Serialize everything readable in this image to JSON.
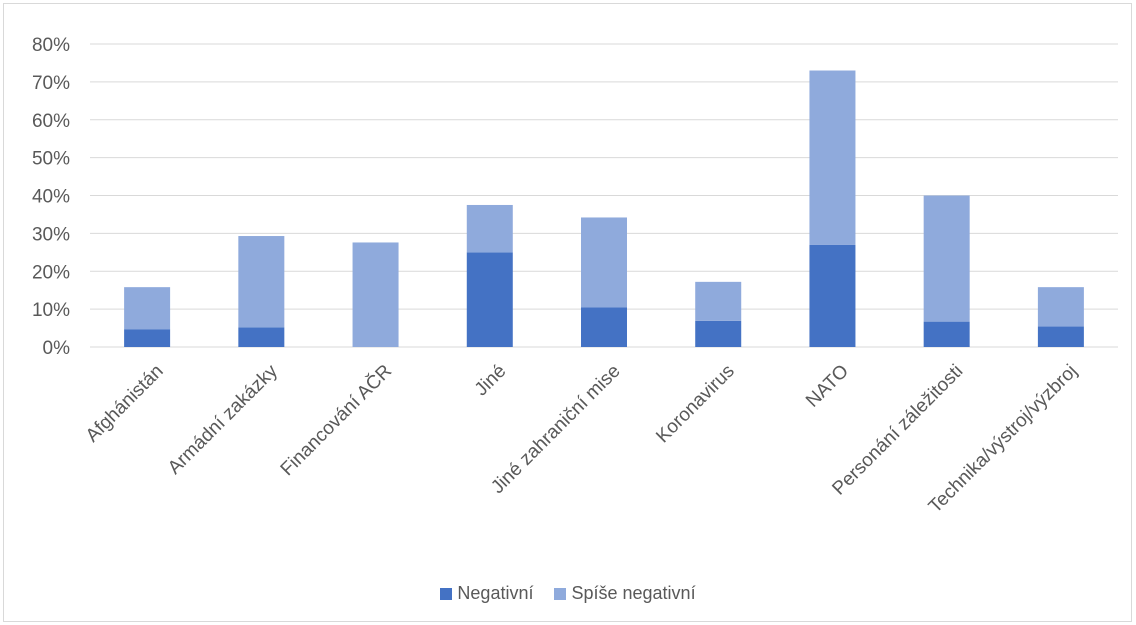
{
  "chart_data": {
    "type": "bar",
    "stacked": true,
    "categories": [
      "Afghánistán",
      "Armádní zakázky",
      "Financování AČR",
      "Jiné",
      "Jiné zahraniční mise",
      "Koronavirus",
      "NATO",
      "Personání záležitosti",
      "Technika/výstroj/výzbroj"
    ],
    "series": [
      {
        "name": "Negativní",
        "color": "#4472c4",
        "values": [
          0.047,
          0.052,
          0.0,
          0.25,
          0.105,
          0.069,
          0.27,
          0.067,
          0.054
        ]
      },
      {
        "name": "Spíše negativní",
        "color": "#8faadc",
        "values": [
          0.111,
          0.241,
          0.276,
          0.125,
          0.237,
          0.103,
          0.46,
          0.333,
          0.104
        ]
      }
    ],
    "y_ticks": [
      "0%",
      "10%",
      "20%",
      "30%",
      "40%",
      "50%",
      "60%",
      "70%",
      "80%"
    ],
    "ylim": [
      0,
      0.8
    ],
    "grid": true,
    "legend_position": "bottom"
  }
}
